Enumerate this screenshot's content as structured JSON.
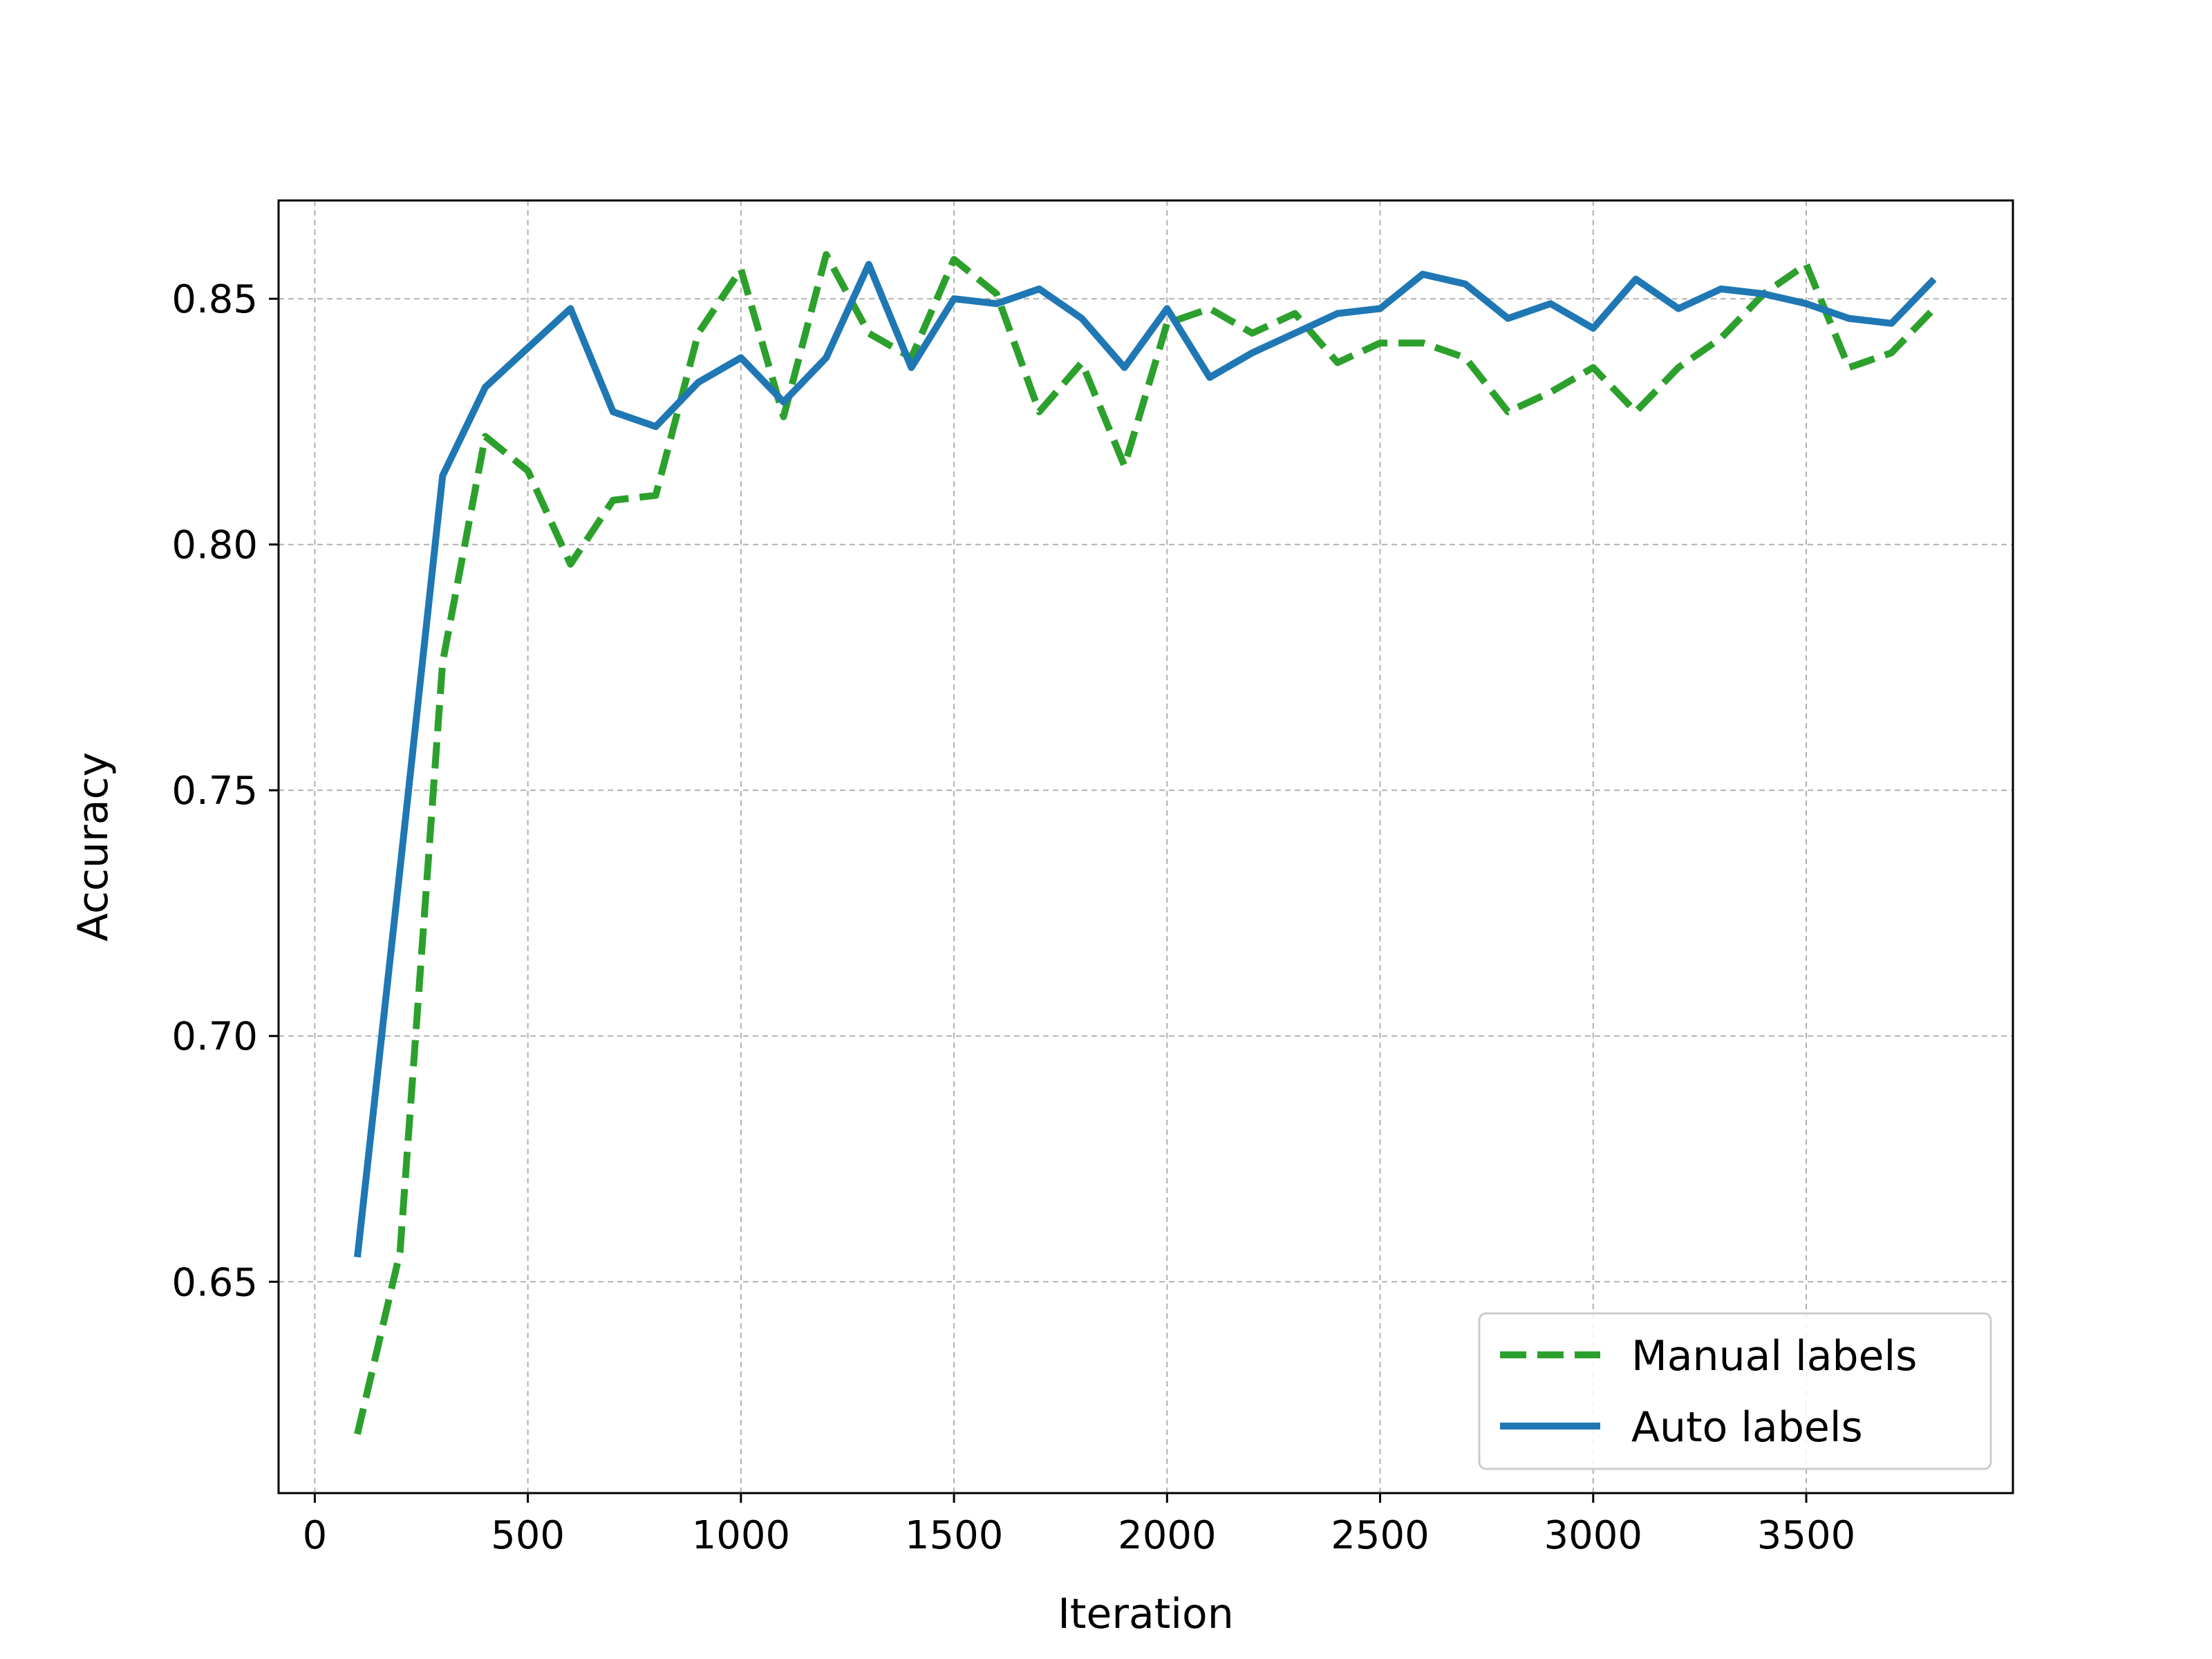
{
  "chart_data": {
    "type": "line",
    "xlabel": "Iteration",
    "ylabel": "Accuracy",
    "xlim": [
      -85,
      3985
    ],
    "ylim": [
      0.607,
      0.87
    ],
    "x_ticks": [
      0,
      500,
      1000,
      1500,
      2000,
      2500,
      3000,
      3500
    ],
    "x_tick_labels": [
      "0",
      "500",
      "1000",
      "1500",
      "2000",
      "2500",
      "3000",
      "3500"
    ],
    "y_ticks": [
      0.65,
      0.7,
      0.75,
      0.8,
      0.85
    ],
    "y_tick_labels": [
      "0.65",
      "0.70",
      "0.75",
      "0.80",
      "0.85"
    ],
    "grid": true,
    "legend_position": "lower-right",
    "x": [
      100,
      200,
      300,
      400,
      500,
      600,
      700,
      800,
      900,
      1000,
      1100,
      1200,
      1300,
      1400,
      1500,
      1600,
      1700,
      1800,
      1900,
      2000,
      2100,
      2200,
      2300,
      2400,
      2500,
      2600,
      2700,
      2800,
      2900,
      3000,
      3100,
      3200,
      3300,
      3400,
      3500,
      3600,
      3700,
      3800
    ],
    "series": [
      {
        "name": "Manual labels",
        "style": "dashed",
        "color": "#2ca02c",
        "values": [
          0.619,
          0.656,
          0.776,
          0.822,
          0.815,
          0.796,
          0.809,
          0.81,
          0.843,
          0.856,
          0.826,
          0.859,
          0.843,
          0.838,
          0.858,
          0.851,
          0.827,
          0.837,
          0.816,
          0.845,
          0.848,
          0.843,
          0.847,
          0.837,
          0.841,
          0.841,
          0.838,
          0.827,
          0.831,
          0.836,
          0.827,
          0.836,
          0.842,
          0.851,
          0.857,
          0.836,
          0.839,
          0.848
        ]
      },
      {
        "name": "Auto labels",
        "style": "solid",
        "color": "#1f77b4",
        "values": [
          0.655,
          0.734,
          0.814,
          0.832,
          0.84,
          0.848,
          0.827,
          0.824,
          0.833,
          0.838,
          0.829,
          0.838,
          0.857,
          0.836,
          0.85,
          0.849,
          0.852,
          0.846,
          0.836,
          0.848,
          0.834,
          0.839,
          0.843,
          0.847,
          0.848,
          0.855,
          0.853,
          0.846,
          0.849,
          0.844,
          0.854,
          0.848,
          0.852,
          0.851,
          0.849,
          0.846,
          0.845,
          0.854
        ]
      }
    ]
  }
}
